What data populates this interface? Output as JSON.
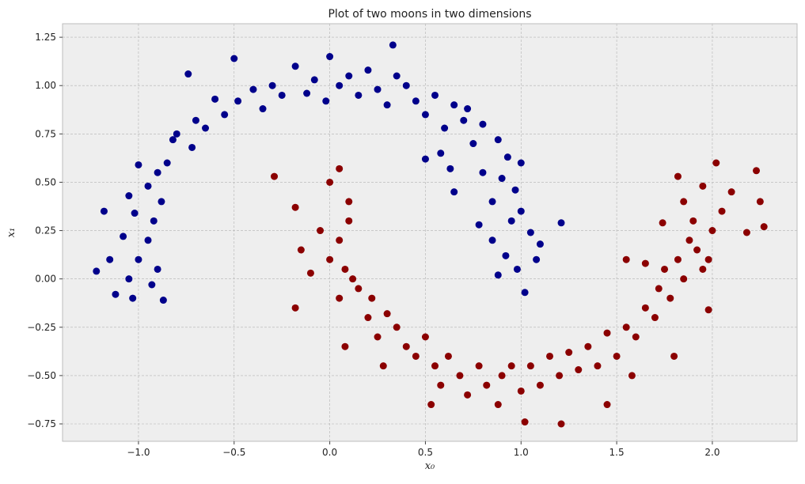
{
  "chart_data": {
    "type": "scatter",
    "title": "Plot of two moons in two dimensions",
    "x_label": "x₀",
    "y_label": "x₁",
    "xlim": [
      -1.397,
      2.443
    ],
    "ylim": [
      -0.84,
      1.32
    ],
    "xticks": [
      {
        "value": -1.0,
        "label": "−1.0"
      },
      {
        "value": -0.5,
        "label": "−0.5"
      },
      {
        "value": 0,
        "label": "0.0"
      },
      {
        "value": 0.5,
        "label": "0.5"
      },
      {
        "value": 1.0,
        "label": "1.0"
      },
      {
        "value": 1.5,
        "label": "1.5"
      },
      {
        "value": 2.0,
        "label": "2.0"
      }
    ],
    "yticks": [
      {
        "value": -0.75,
        "label": "−0.75"
      },
      {
        "value": -0.5,
        "label": "−0.50"
      },
      {
        "value": -0.25,
        "label": "−0.25"
      },
      {
        "value": 0,
        "label": "0.00"
      },
      {
        "value": 0.25,
        "label": "0.25"
      },
      {
        "value": 0.5,
        "label": "0.50"
      },
      {
        "value": 0.75,
        "label": "0.75"
      },
      {
        "value": 1.0,
        "label": "1.00"
      },
      {
        "value": 1.25,
        "label": "1.25"
      }
    ],
    "grid": true,
    "series": [
      {
        "color": "#00008b",
        "x": [
          1.05,
          0.98,
          1.1,
          0.95,
          1.08,
          0.92,
          1.02,
          1.21,
          0.88,
          1.0,
          0.97,
          0.9,
          1.0,
          0.85,
          0.8,
          0.93,
          0.88,
          0.75,
          0.8,
          0.7,
          0.65,
          0.72,
          0.6,
          0.55,
          0.5,
          0.45,
          0.4,
          0.35,
          0.33,
          0.3,
          0.25,
          0.2,
          0.15,
          0.1,
          0.05,
          0.0,
          -0.02,
          -0.08,
          -0.12,
          -0.18,
          -0.25,
          -0.3,
          -0.35,
          -0.4,
          -0.48,
          -0.5,
          -0.55,
          -0.6,
          -0.65,
          -0.7,
          -0.74,
          -0.72,
          -0.8,
          -0.85,
          -0.82,
          -0.9,
          -0.95,
          -0.88,
          -1.0,
          -1.05,
          -0.92,
          -1.02,
          -1.08,
          -0.95,
          -1.0,
          -1.05,
          -0.9,
          -1.12,
          -1.22,
          -1.18,
          -0.87,
          -1.03,
          -0.93,
          -1.15,
          0.5,
          0.58,
          0.65,
          0.78,
          0.63,
          0.85
        ],
        "y": [
          0.24,
          0.05,
          0.18,
          0.3,
          0.1,
          0.12,
          -0.07,
          0.29,
          0.02,
          0.35,
          0.46,
          0.52,
          0.6,
          0.4,
          0.55,
          0.63,
          0.72,
          0.7,
          0.8,
          0.82,
          0.9,
          0.88,
          0.78,
          0.95,
          0.85,
          0.92,
          1.0,
          1.05,
          1.21,
          0.9,
          0.98,
          1.08,
          0.95,
          1.05,
          1.0,
          1.15,
          0.92,
          1.03,
          0.96,
          1.1,
          0.95,
          1.0,
          0.88,
          0.98,
          0.92,
          1.14,
          0.85,
          0.93,
          0.78,
          0.82,
          1.06,
          0.68,
          0.75,
          0.6,
          0.72,
          0.55,
          0.48,
          0.4,
          0.59,
          0.43,
          0.3,
          0.34,
          0.22,
          0.2,
          0.1,
          0.0,
          0.05,
          -0.08,
          0.04,
          0.35,
          -0.11,
          -0.1,
          -0.03,
          0.1,
          0.62,
          0.65,
          0.45,
          0.28,
          0.57,
          0.2
        ]
      },
      {
        "color": "#8b0000",
        "x": [
          0.0,
          0.05,
          -0.29,
          -0.18,
          0.1,
          -0.05,
          0.05,
          0.1,
          0.0,
          -0.15,
          -0.1,
          0.08,
          -0.18,
          0.05,
          0.12,
          0.15,
          0.2,
          0.08,
          0.22,
          0.3,
          0.25,
          0.35,
          0.4,
          0.28,
          0.45,
          0.5,
          0.55,
          0.58,
          0.53,
          0.62,
          0.68,
          0.72,
          0.78,
          0.82,
          0.88,
          0.9,
          0.95,
          1.0,
          1.02,
          1.05,
          1.1,
          1.15,
          1.21,
          1.2,
          1.25,
          1.3,
          1.35,
          1.4,
          1.45,
          1.45,
          1.5,
          1.55,
          1.6,
          1.58,
          1.65,
          1.7,
          1.72,
          1.75,
          1.8,
          1.78,
          1.82,
          1.85,
          1.88,
          1.9,
          1.85,
          1.92,
          1.95,
          1.98,
          2.0,
          2.02,
          2.05,
          2.1,
          2.18,
          2.25,
          2.27,
          2.23,
          1.82,
          1.74,
          1.65,
          1.55,
          1.95,
          1.98
        ],
        "y": [
          0.5,
          0.57,
          0.53,
          0.37,
          0.4,
          0.25,
          0.2,
          0.3,
          0.1,
          0.15,
          0.03,
          0.05,
          -0.15,
          -0.1,
          0.0,
          -0.05,
          -0.2,
          -0.35,
          -0.1,
          -0.18,
          -0.3,
          -0.25,
          -0.35,
          -0.45,
          -0.4,
          -0.3,
          -0.45,
          -0.55,
          -0.65,
          -0.4,
          -0.5,
          -0.6,
          -0.45,
          -0.55,
          -0.65,
          -0.5,
          -0.45,
          -0.58,
          -0.74,
          -0.45,
          -0.55,
          -0.4,
          -0.75,
          -0.5,
          -0.38,
          -0.47,
          -0.35,
          -0.45,
          -0.65,
          -0.28,
          -0.4,
          -0.25,
          -0.3,
          -0.5,
          -0.15,
          -0.2,
          -0.05,
          0.05,
          -0.4,
          -0.1,
          0.1,
          0.0,
          0.2,
          0.3,
          0.4,
          0.15,
          0.48,
          -0.16,
          0.25,
          0.6,
          0.35,
          0.45,
          0.24,
          0.4,
          0.27,
          0.56,
          0.53,
          0.29,
          0.08,
          0.1,
          0.05,
          0.1
        ]
      }
    ]
  }
}
